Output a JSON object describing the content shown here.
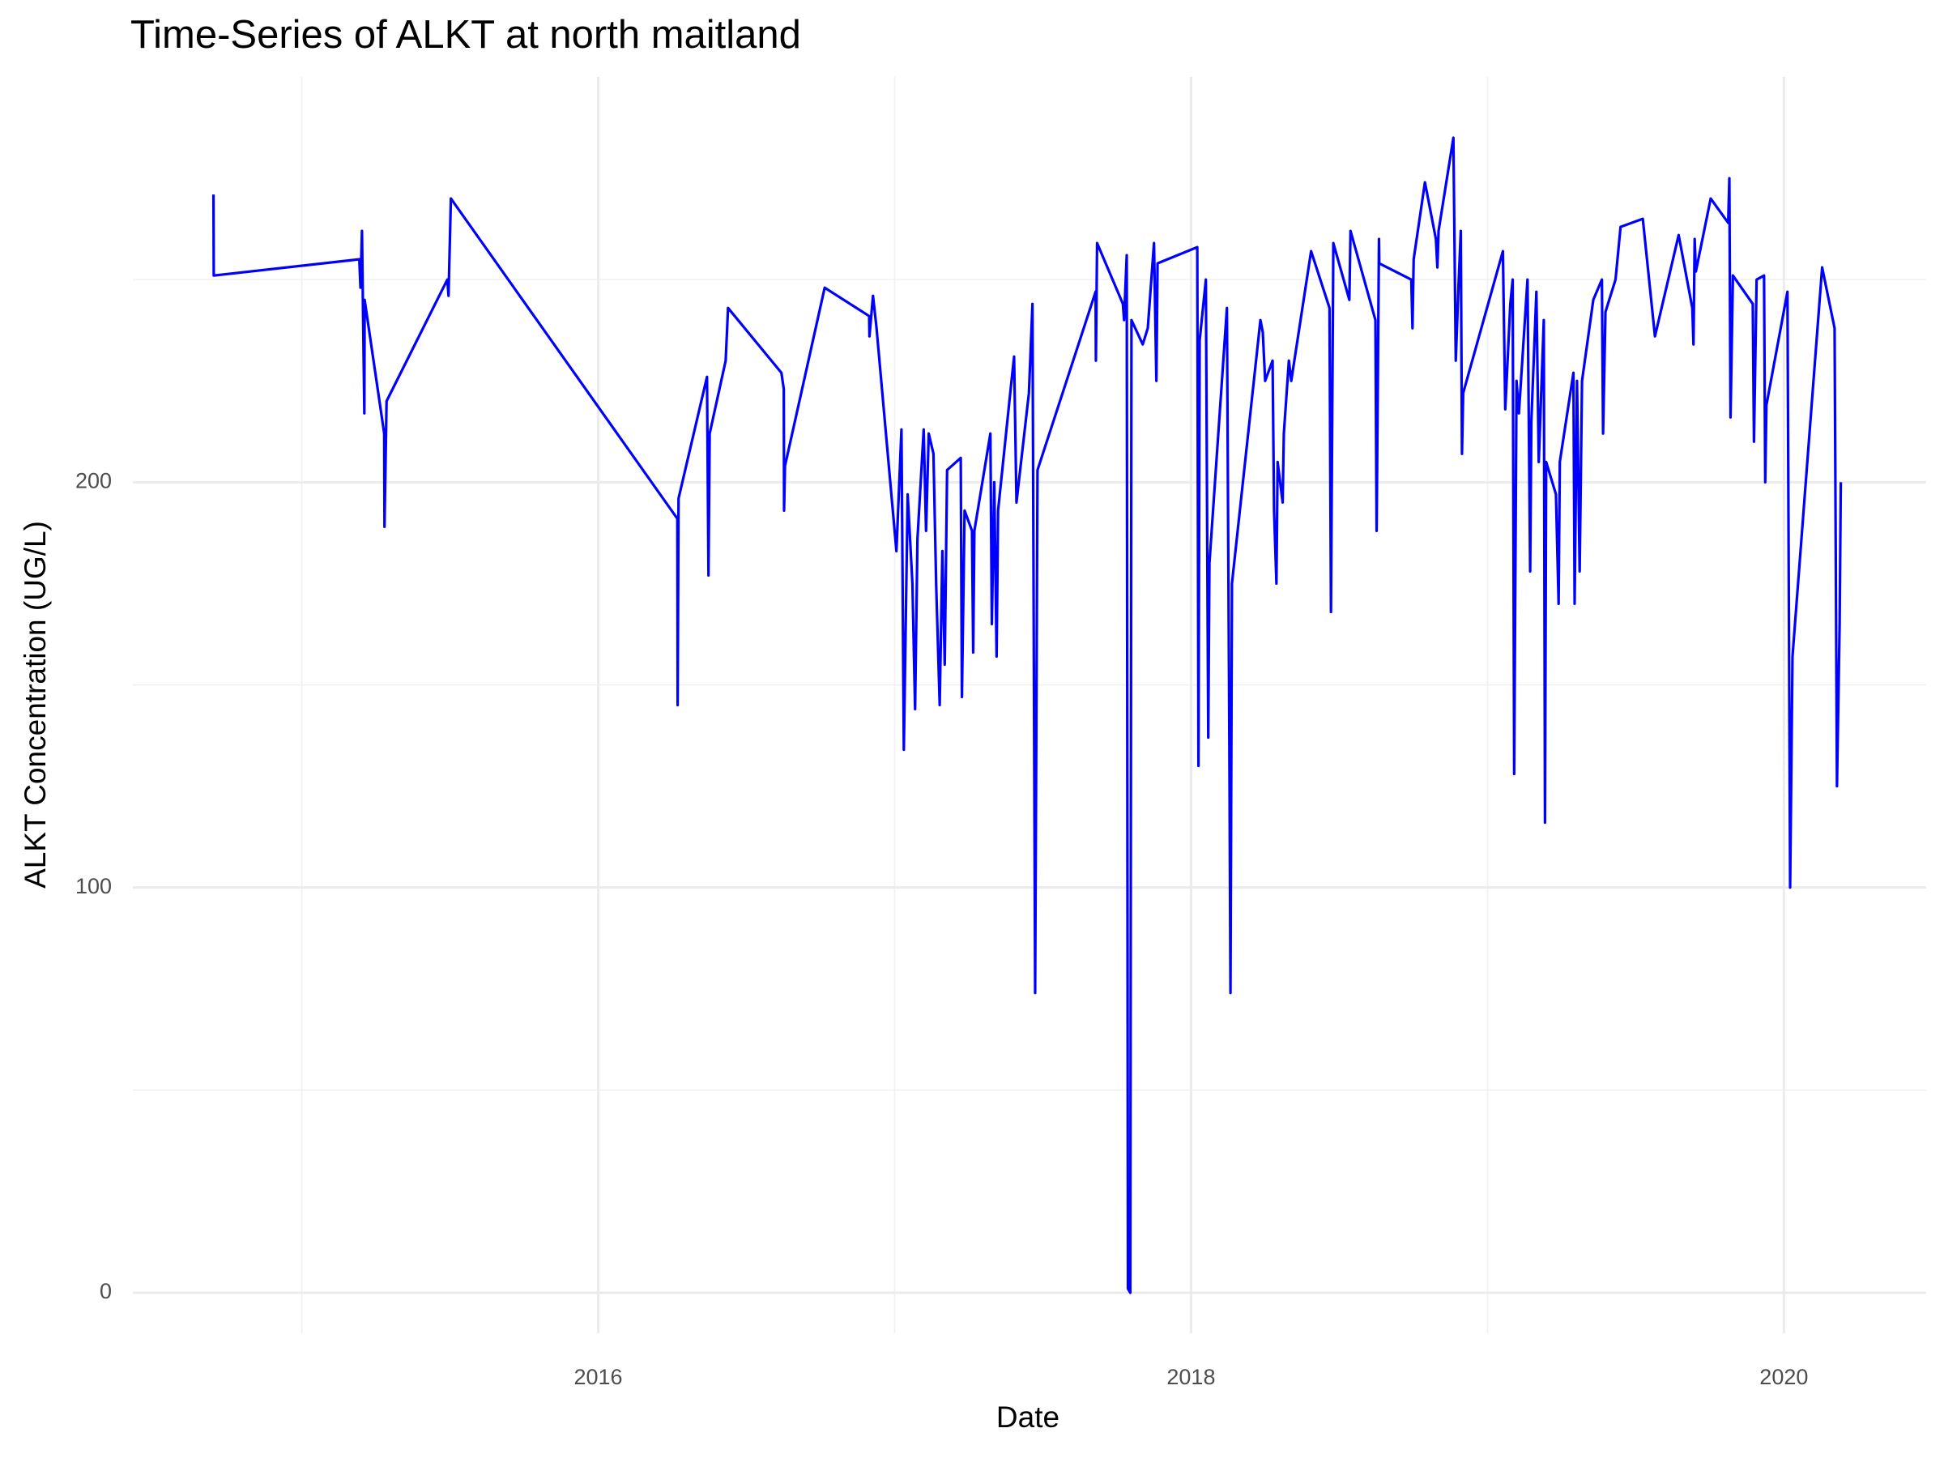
{
  "chart_data": {
    "type": "line",
    "title": "Time-Series of ALKT at north maitland",
    "x_label": "Date",
    "y_label": "ALKT Concentration (UG/L)",
    "xlim": [
      2014.43,
      2020.48
    ],
    "ylim": [
      -10,
      300
    ],
    "xticks": [
      2016,
      2018,
      2020
    ],
    "yticks": [
      0,
      100,
      200
    ],
    "xminorticks": [
      2015,
      2017,
      2019
    ],
    "yminorticks": [
      50,
      150,
      250
    ],
    "grid": true,
    "x": [
      2014.702,
      2014.703,
      2015.194,
      2015.198,
      2015.203,
      2015.211,
      2015.212,
      2015.278,
      2015.279,
      2015.286,
      2015.491,
      2015.495,
      2015.503,
      2016.267,
      2016.268,
      2016.271,
      2016.367,
      2016.372,
      2016.376,
      2016.43,
      2016.438,
      2016.618,
      2016.626,
      2016.627,
      2016.63,
      2016.764,
      2016.914,
      2016.915,
      2016.927,
      2016.939,
      2017.006,
      2017.023,
      2017.031,
      2017.044,
      2017.06,
      2017.069,
      2017.077,
      2017.098,
      2017.106,
      2017.115,
      2017.131,
      2017.14,
      2017.152,
      2017.161,
      2017.169,
      2017.177,
      2017.223,
      2017.227,
      2017.236,
      2017.261,
      2017.265,
      2017.269,
      2017.323,
      2017.328,
      2017.336,
      2017.344,
      2017.349,
      2017.39,
      2017.403,
      2017.411,
      2017.453,
      2017.465,
      2017.474,
      2017.482,
      2017.678,
      2017.679,
      2017.683,
      2017.77,
      2017.774,
      2017.783,
      2017.787,
      2017.795,
      2017.799,
      2017.837,
      2017.854,
      2017.875,
      2017.883,
      2017.887,
      2018.021,
      2018.025,
      2018.029,
      2018.05,
      2018.058,
      2018.062,
      2018.121,
      2018.129,
      2018.133,
      2018.138,
      2018.234,
      2018.242,
      2018.25,
      2018.275,
      2018.28,
      2018.288,
      2018.292,
      2018.309,
      2018.313,
      2018.33,
      2018.338,
      2018.405,
      2018.467,
      2018.472,
      2018.48,
      2018.534,
      2018.538,
      2018.622,
      2018.626,
      2018.634,
      2018.635,
      2018.743,
      2018.747,
      2018.751,
      2018.789,
      2018.826,
      2018.831,
      2018.835,
      2018.885,
      2018.893,
      2018.902,
      2018.91,
      2018.914,
      2018.918,
      2019.052,
      2019.06,
      2019.077,
      2019.085,
      2019.09,
      2019.098,
      2019.106,
      2019.135,
      2019.144,
      2019.148,
      2019.165,
      2019.173,
      2019.19,
      2019.194,
      2019.198,
      2019.231,
      2019.24,
      2019.244,
      2019.29,
      2019.294,
      2019.302,
      2019.311,
      2019.319,
      2019.357,
      2019.386,
      2019.39,
      2019.398,
      2019.432,
      2019.449,
      2019.524,
      2019.565,
      2019.645,
      2019.691,
      2019.695,
      2019.699,
      2019.703,
      2019.753,
      2019.812,
      2019.816,
      2019.82,
      2019.828,
      2019.895,
      2019.899,
      2019.908,
      2019.933,
      2019.937,
      2019.941,
      2020.012,
      2020.021,
      2020.029,
      2020.129,
      2020.171,
      2020.179,
      2020.188,
      2020.192
    ],
    "series": [
      {
        "name": "ALKT",
        "color": "#0000ff",
        "values": [
          271,
          251,
          255,
          248,
          262,
          217,
          245,
          212,
          189,
          220,
          250,
          246,
          270,
          191,
          145,
          196,
          226,
          177,
          212,
          230,
          243,
          227,
          223,
          193,
          204,
          248,
          241,
          236,
          246,
          238,
          183,
          213,
          134,
          197,
          175,
          144,
          186,
          213,
          188,
          212,
          207,
          175,
          145,
          183,
          155,
          203,
          206,
          147,
          193,
          188,
          158,
          188,
          212,
          165,
          200,
          157,
          193,
          222,
          231,
          195,
          222,
          244,
          74,
          203,
          247,
          230,
          259,
          244,
          240,
          256,
          1,
          0,
          240,
          234,
          238,
          259,
          225,
          254,
          258,
          130,
          235,
          250,
          137,
          180,
          243,
          138,
          74,
          175,
          240,
          237,
          225,
          230,
          193,
          175,
          205,
          195,
          212,
          230,
          225,
          257,
          243,
          168,
          259,
          245,
          262,
          240,
          188,
          260,
          254,
          250,
          238,
          255,
          274,
          260,
          253,
          262,
          285,
          230,
          248,
          262,
          207,
          222,
          257,
          218,
          244,
          250,
          128,
          225,
          217,
          250,
          178,
          215,
          247,
          205,
          240,
          116,
          205,
          197,
          170,
          205,
          227,
          170,
          225,
          178,
          225,
          245,
          250,
          212,
          242,
          250,
          263,
          265,
          236,
          261,
          243,
          234,
          260,
          252,
          270,
          264,
          275,
          216,
          251,
          244,
          210,
          250,
          251,
          200,
          219,
          247,
          100,
          157,
          253,
          238,
          125,
          165,
          200
        ]
      }
    ]
  }
}
